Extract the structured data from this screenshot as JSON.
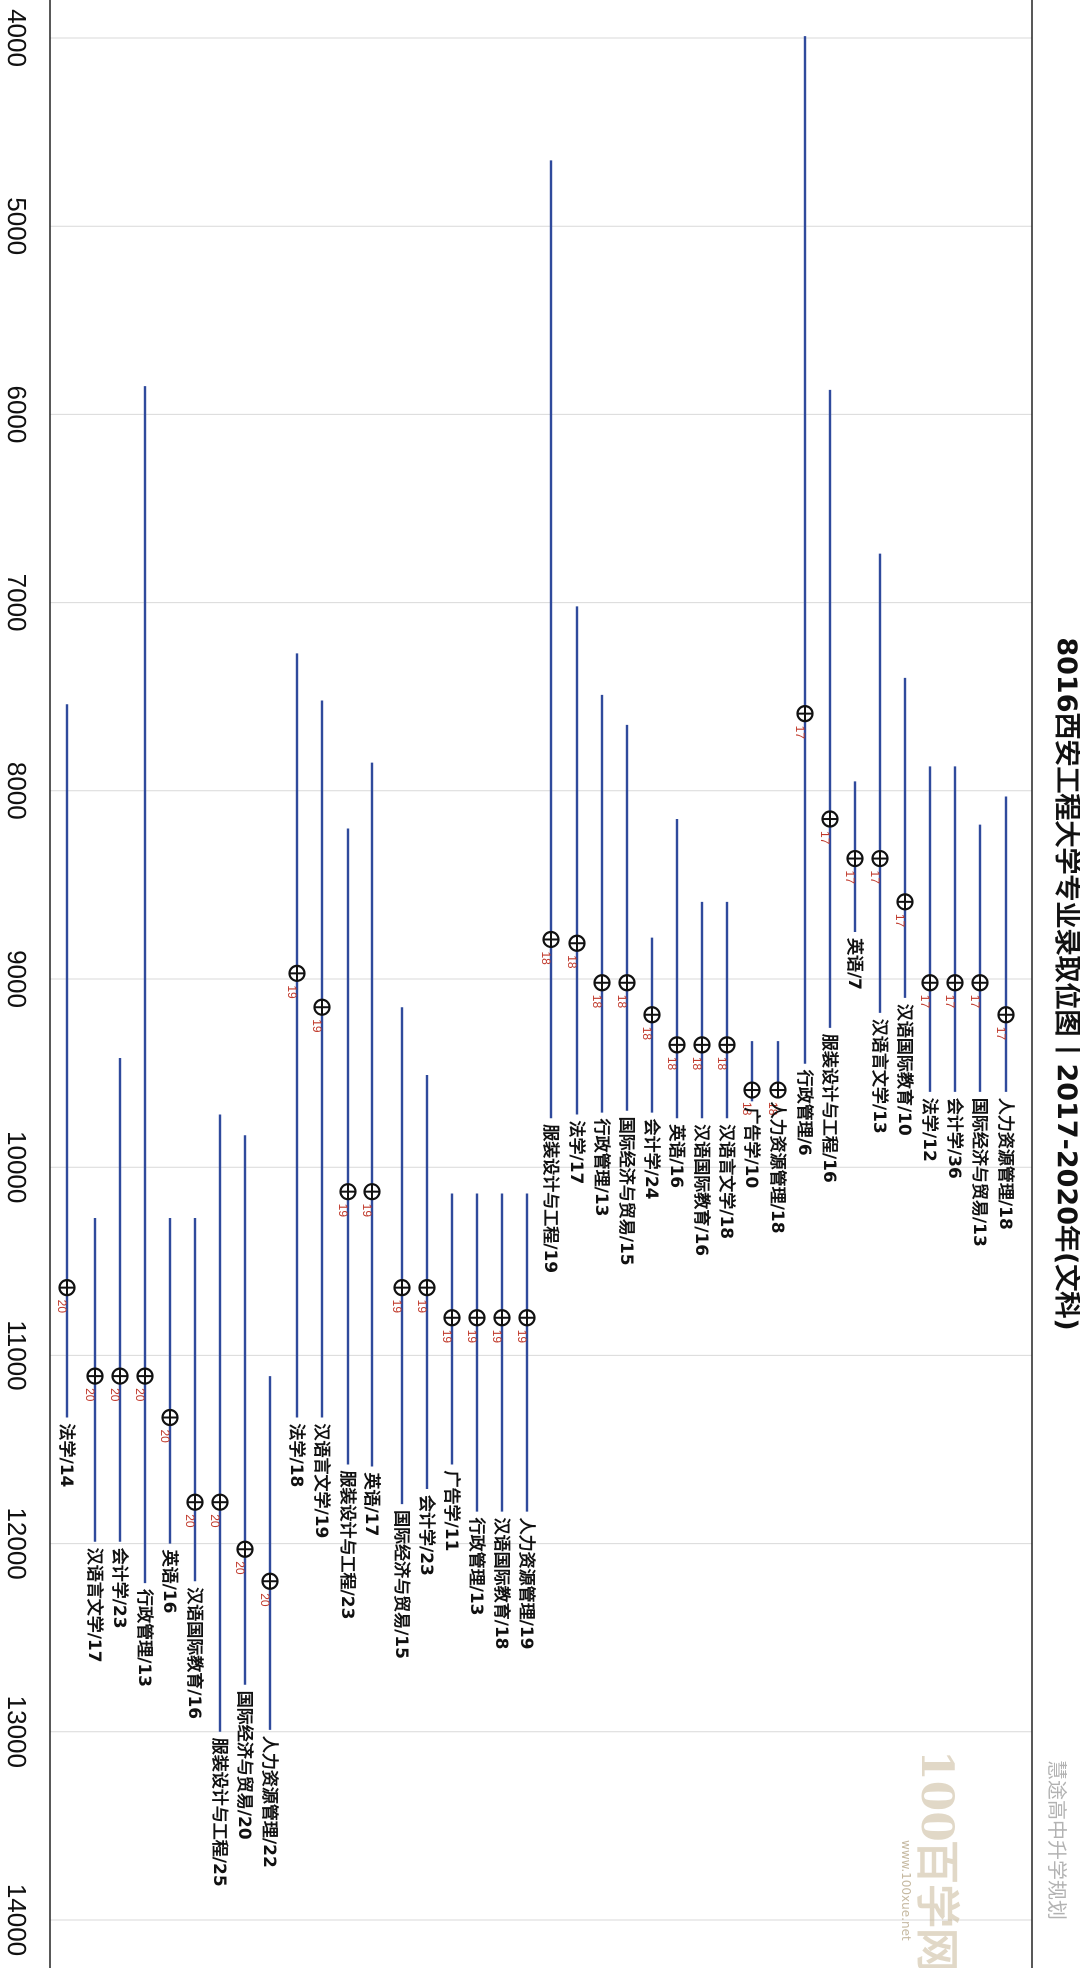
{
  "chart_data": {
    "type": "range",
    "title": "8016西安工程大学专业录取位图丨2017-2020年(文科)",
    "value_axis": {
      "range": [
        4000,
        14000
      ],
      "ticks": [
        "4000",
        "5000",
        "6000",
        "7000",
        "8000",
        "9000",
        "10000",
        "11000",
        "12000",
        "13000",
        "14000"
      ]
    },
    "series": [
      {
        "major": "人力资源管理/18",
        "year": "17",
        "marker": 9190,
        "low": 8030,
        "high": 9600
      },
      {
        "major": "国际经济与贸易/13",
        "year": "17",
        "marker": 9020,
        "low": 8180,
        "high": 9600
      },
      {
        "major": "会计学/36",
        "year": "17",
        "marker": 9020,
        "low": 7870,
        "high": 9600
      },
      {
        "major": "法学/12",
        "year": "17",
        "marker": 9020,
        "low": 7870,
        "high": 9600
      },
      {
        "major": "汉语国际教育/10",
        "year": "17",
        "marker": 8590,
        "low": 7400,
        "high": 9100
      },
      {
        "major": "汉语言文学/13",
        "year": "17",
        "marker": 8360,
        "low": 6740,
        "high": 9180
      },
      {
        "major": "英语/7",
        "year": "17",
        "marker": 8360,
        "low": 7950,
        "high": 8750
      },
      {
        "major": "服装设计与工程/16",
        "year": "17",
        "marker": 8150,
        "low": 5870,
        "high": 9260
      },
      {
        "major": "行政管理/6",
        "year": "17",
        "marker": 7590,
        "low": 3990,
        "high": 9450
      },
      {
        "major": "人力资源管理/18",
        "year": "18",
        "marker": 9590,
        "low": 9330,
        "high": 9620
      },
      {
        "major": "广告学/10",
        "year": "18",
        "marker": 9590,
        "low": 9330,
        "high": 9650
      },
      {
        "major": "汉语言文学/18",
        "year": "18",
        "marker": 9350,
        "low": 8590,
        "high": 9740
      },
      {
        "major": "汉语国际教育/16",
        "year": "18",
        "marker": 9350,
        "low": 8590,
        "high": 9740
      },
      {
        "major": "英语/16",
        "year": "18",
        "marker": 9350,
        "low": 8150,
        "high": 9740
      },
      {
        "major": "会计学/24",
        "year": "18",
        "marker": 9190,
        "low": 8780,
        "high": 9710
      },
      {
        "major": "国际经济与贸易/15",
        "year": "18",
        "marker": 9020,
        "low": 7650,
        "high": 9700
      },
      {
        "major": "行政管理/13",
        "year": "18",
        "marker": 9020,
        "low": 7490,
        "high": 9710
      },
      {
        "major": "法学/17",
        "year": "18",
        "marker": 8810,
        "low": 7020,
        "high": 9720
      },
      {
        "major": "服装设计与工程/19",
        "year": "18",
        "marker": 8790,
        "low": 4650,
        "high": 9740
      },
      {
        "major": "人力资源管理/19",
        "year": "19",
        "marker": 10800,
        "low": 10140,
        "high": 11830
      },
      {
        "major": "汉语国际教育/18",
        "year": "19",
        "marker": 10800,
        "low": 10140,
        "high": 11830
      },
      {
        "major": "行政管理/13",
        "year": "19",
        "marker": 10800,
        "low": 10140,
        "high": 11830
      },
      {
        "major": "广告学/11",
        "year": "19",
        "marker": 10800,
        "low": 10140,
        "high": 11580
      },
      {
        "major": "会计学/23",
        "year": "19",
        "marker": 10640,
        "low": 9510,
        "high": 11710
      },
      {
        "major": "国际经济与贸易/15",
        "year": "19",
        "marker": 10640,
        "low": 9150,
        "high": 11790
      },
      {
        "major": "英语/17",
        "year": "19",
        "marker": 10130,
        "low": 7850,
        "high": 11590
      },
      {
        "major": "服装设计与工程/23",
        "year": "19",
        "marker": 10130,
        "low": 8200,
        "high": 11580
      },
      {
        "major": "汉语言文学/19",
        "year": "19",
        "marker": 9150,
        "low": 7520,
        "high": 11330
      },
      {
        "major": "法学/18",
        "year": "19",
        "marker": 8970,
        "low": 7270,
        "high": 11330
      },
      {
        "major": "人力资源管理/22",
        "year": "20",
        "marker": 12200,
        "low": 11110,
        "high": 12990
      },
      {
        "major": "国际经济与贸易/20",
        "year": "20",
        "marker": 12030,
        "low": 9830,
        "high": 12750
      },
      {
        "major": "服装设计与工程/25",
        "year": "20",
        "marker": 11780,
        "low": 9720,
        "high": 13000
      },
      {
        "major": "汉语国际教育/16",
        "year": "20",
        "marker": 11780,
        "low": 10270,
        "high": 12200
      },
      {
        "major": "英语/16",
        "year": "20",
        "marker": 11330,
        "low": 10270,
        "high": 12000
      },
      {
        "major": "行政管理/13",
        "year": "20",
        "marker": 11110,
        "low": 5850,
        "high": 12210
      },
      {
        "major": "会计学/23",
        "year": "20",
        "marker": 11110,
        "low": 9420,
        "high": 11990
      },
      {
        "major": "汉语言文学/17",
        "year": "20",
        "marker": 11110,
        "low": 10270,
        "high": 11990
      },
      {
        "major": "法学/14",
        "year": "20",
        "marker": 10640,
        "low": 7540,
        "high": 11330
      }
    ],
    "colors": {
      "line": "#2f4a9c",
      "marker": "#111111",
      "year_label": "#c0392b",
      "grid": "#d9d9d9"
    },
    "grid": true
  },
  "watermark": {
    "wechat_text": "慧途高中升学规划",
    "logo_number": "100",
    "logo_text": "百学网",
    "url": "www.100xue.net"
  }
}
